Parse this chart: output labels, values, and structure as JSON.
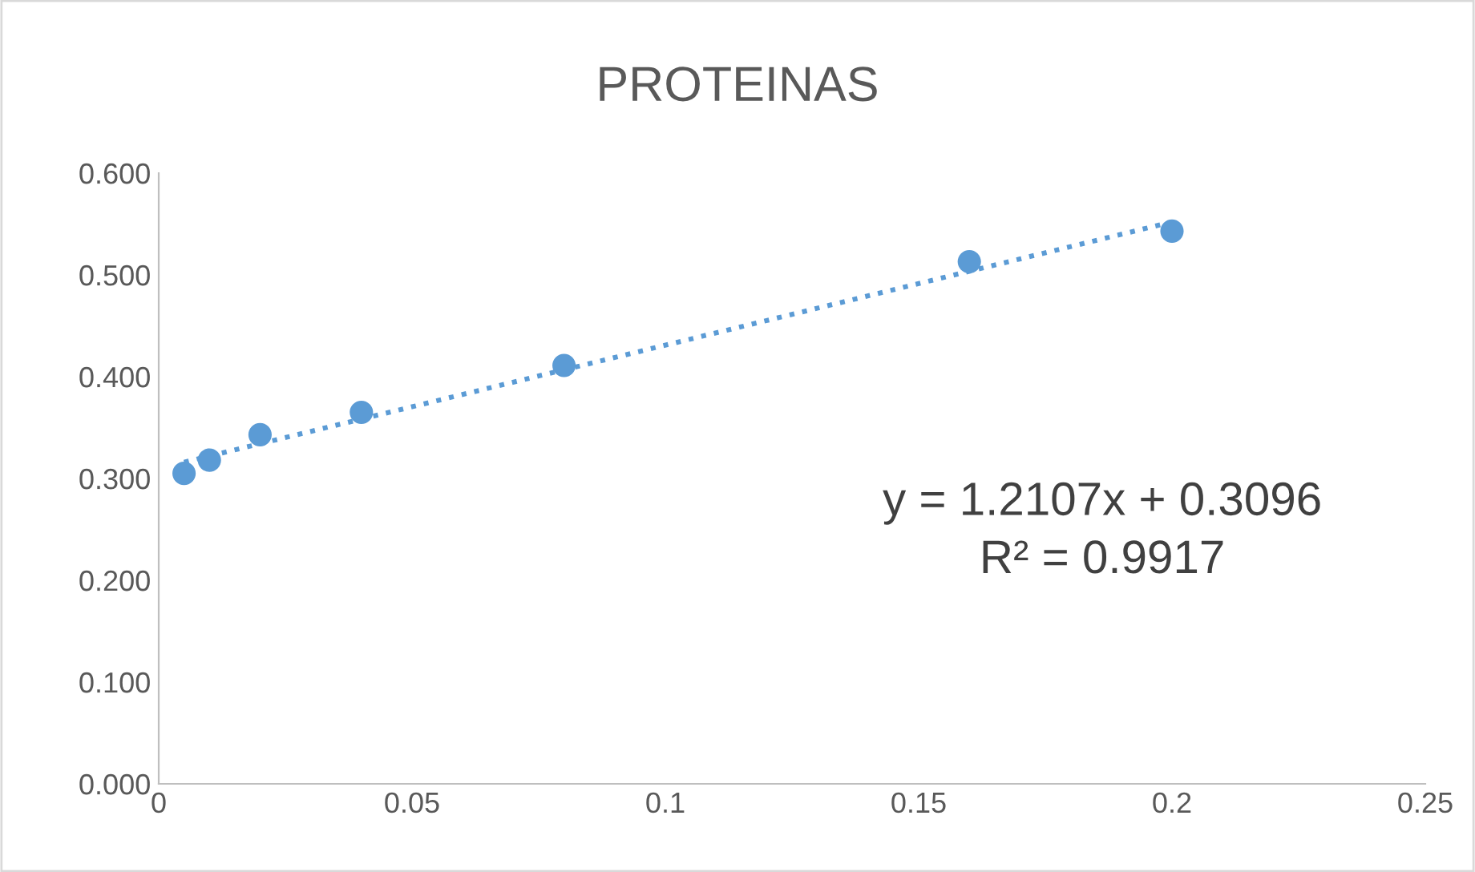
{
  "chart_data": {
    "type": "scatter",
    "title": "PROTEINAS",
    "series": [
      {
        "type": "scatter",
        "color": "#5b9bd5",
        "marker": "circle",
        "x": [
          0.005,
          0.01,
          0.02,
          0.04,
          0.08,
          0.16,
          0.2
        ],
        "values": [
          0.305,
          0.318,
          0.343,
          0.365,
          0.411,
          0.513,
          0.543
        ]
      },
      {
        "type": "line",
        "color": "#5b9bd5",
        "line_style": "dotted",
        "marker": "none",
        "x": [
          0.005,
          0.2
        ],
        "values": [
          0.316,
          0.552
        ]
      }
    ],
    "xlim": [
      0,
      0.25
    ],
    "xticks": [
      0,
      0.05,
      0.1,
      0.15,
      0.2,
      0.25
    ],
    "ylim": [
      0,
      0.6
    ],
    "yticks": [
      {
        "value": 0,
        "label": "0.000"
      },
      {
        "value": 0.1,
        "label": "0.100"
      },
      {
        "value": 0.2,
        "label": "0.200"
      },
      {
        "value": 0.3,
        "label": "0.300"
      },
      {
        "value": 0.4,
        "label": "0.400"
      },
      {
        "value": 0.5,
        "label": "0.500"
      },
      {
        "value": 0.6,
        "label": "0.600"
      }
    ],
    "annotations": [
      "y = 1.2107x + 0.3096",
      "R² = 0.9917"
    ],
    "grid": false,
    "legend": false
  }
}
